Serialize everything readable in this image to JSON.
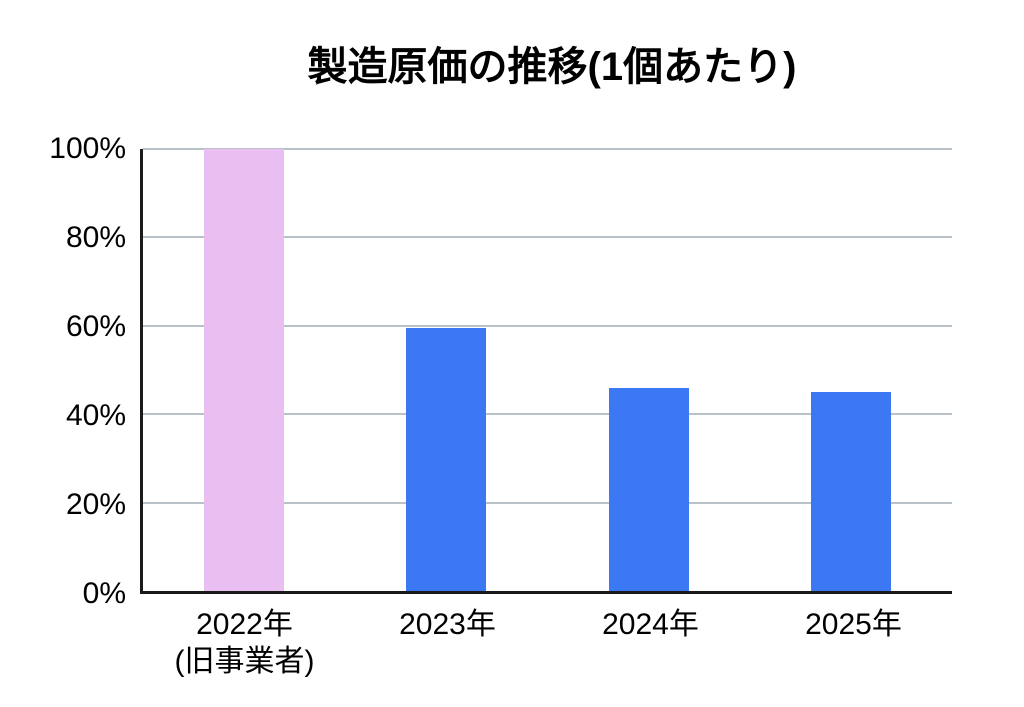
{
  "title": "製造原価の推移(1個あたり)",
  "chart_data": {
    "type": "bar",
    "title": "製造原価の推移(1個あたり)",
    "categories": [
      {
        "label": "2022年",
        "sublabel": "(旧事業者)"
      },
      {
        "label": "2023年",
        "sublabel": ""
      },
      {
        "label": "2024年",
        "sublabel": ""
      },
      {
        "label": "2025年",
        "sublabel": ""
      }
    ],
    "values": [
      100,
      59.5,
      46,
      45
    ],
    "unit": "%",
    "bar_colors": [
      "#e9bef1",
      "#3c78f3",
      "#3c78f3",
      "#3c78f3"
    ],
    "xlabel": "",
    "ylabel": "",
    "ylim": [
      0,
      100
    ],
    "yticks": [
      "100%",
      "80%",
      "60%",
      "40%",
      "20%",
      "0%"
    ],
    "grid": true,
    "legend": false
  },
  "colors": {
    "bar_highlight": "#e9bef1",
    "bar_default": "#3c78f3",
    "gridline": "#b9c2c8",
    "axis": "#1a1a1a",
    "background": "#ffffff",
    "text": "#000000"
  }
}
